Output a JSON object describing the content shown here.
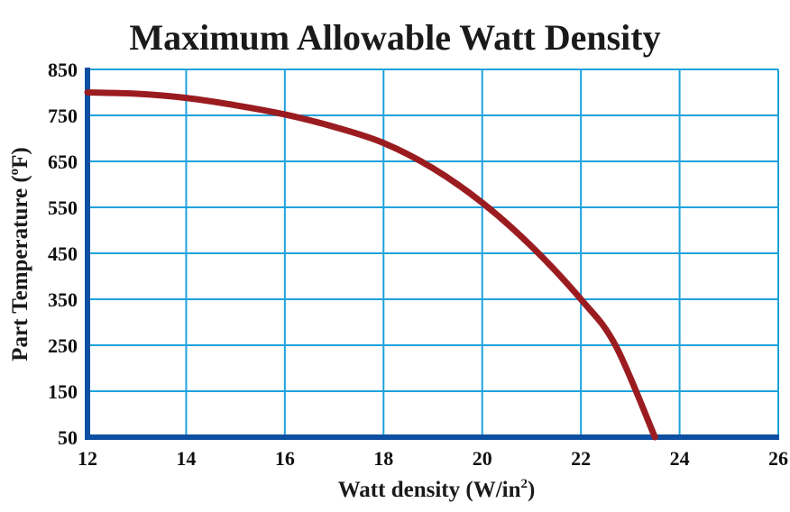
{
  "chart_data": {
    "type": "line",
    "title": "Maximum Allowable Watt Density",
    "xlabel": "Watt density (W/in",
    "xlabel_sup": "2",
    "xlabel_end": ")",
    "ylabel": "Part Temperature (",
    "ylabel_sup": "o",
    "ylabel_end": "F)",
    "xlim": [
      12,
      26
    ],
    "ylim": [
      50,
      850
    ],
    "x_ticks": [
      "12",
      "14",
      "16",
      "18",
      "20",
      "22",
      "24",
      "26"
    ],
    "y_ticks": [
      "50",
      "150",
      "250",
      "350",
      "450",
      "550",
      "650",
      "750",
      "850"
    ],
    "grid": true,
    "series": [
      {
        "color": "#9b1c20",
        "x": [
          12,
          13,
          14,
          15,
          16,
          17,
          18,
          19,
          20,
          21,
          22,
          22.7,
          23.5
        ],
        "y": [
          800,
          797,
          788,
          772,
          752,
          725,
          690,
          635,
          560,
          465,
          350,
          250,
          50
        ]
      }
    ],
    "colors": {
      "grid": "#1ea2dc",
      "axis": "#0d4fa0",
      "frame": "#1ea2dc"
    }
  }
}
